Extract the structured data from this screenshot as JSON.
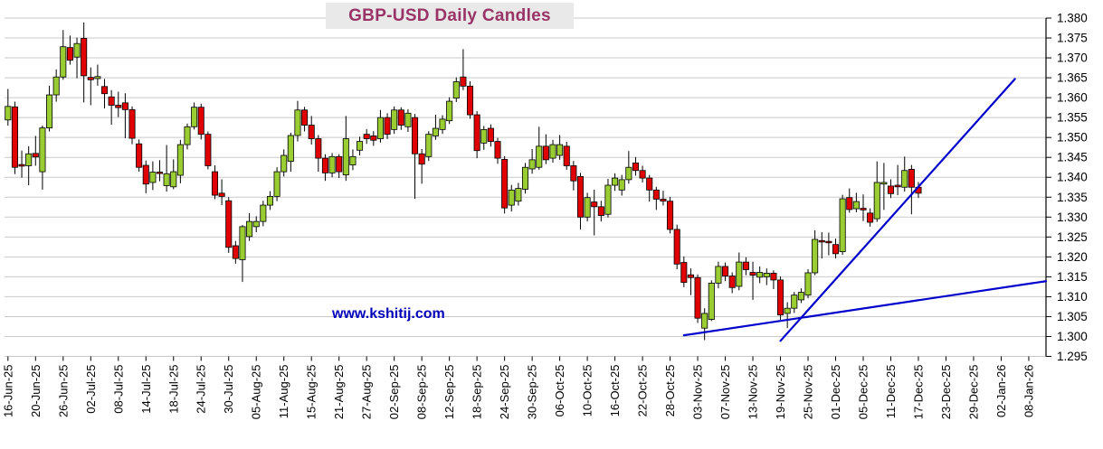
{
  "page": {
    "title": "GBP-USD Daily Candles",
    "watermark": "www.kshitij.com"
  },
  "chart_data": {
    "type": "candlestick",
    "title": "GBP-USD Daily Candles",
    "watermark_text": "www.kshitij.com",
    "ylim": [
      1.295,
      1.38
    ],
    "ytick_step": 0.005,
    "ytick_labels": [
      "1.380",
      "1.375",
      "1.370",
      "1.365",
      "1.360",
      "1.355",
      "1.350",
      "1.345",
      "1.340",
      "1.335",
      "1.330",
      "1.325",
      "1.320",
      "1.315",
      "1.310",
      "1.305",
      "1.300",
      "1.295"
    ],
    "xtick_labels": [
      "16-Jun-25",
      "20-Jun-25",
      "26-Jun-25",
      "02-Jul-25",
      "08-Jul-25",
      "14-Jul-25",
      "18-Jul-25",
      "24-Jul-25",
      "30-Jul-25",
      "05-Aug-25",
      "11-Aug-25",
      "15-Aug-25",
      "21-Aug-25",
      "27-Aug-25",
      "02-Sep-25",
      "08-Sep-25",
      "12-Sep-25",
      "18-Sep-25",
      "24-Sep-25",
      "30-Sep-25",
      "06-Oct-25",
      "10-Oct-25",
      "16-Oct-25",
      "22-Oct-25",
      "28-Oct-25",
      "03-Nov-25",
      "07-Nov-25",
      "13-Nov-25",
      "19-Nov-25",
      "25-Nov-25",
      "01-Dec-25",
      "05-Dec-25",
      "11-Dec-25",
      "17-Dec-25",
      "23-Dec-25",
      "29-Dec-25",
      "02-Jan-26",
      "08-Jan-26"
    ],
    "xtick_every": 4,
    "total_slots": 151,
    "grid": true,
    "legend": "none",
    "colors": {
      "up": "#9ACD32",
      "down": "#E00000",
      "wick": "#000000",
      "body_border": "#000000",
      "grid": "#c9c9c9",
      "axis": "#000000",
      "trendline": "#0000CC",
      "title_color": "#993366",
      "title_bg": "#e9e9e9",
      "watermark_color": "#0000bb",
      "background": "#ffffff"
    },
    "trendlines": [
      {
        "x1_slot": 98,
        "v1": 1.3003,
        "x2_slot": 150.5,
        "v2": 1.3139
      },
      {
        "x1_slot": 112,
        "v1": 1.2989,
        "x2_slot": 146,
        "v2": 1.3647
      }
    ],
    "candles": [
      {
        "d": "16-Jun-25",
        "o": 1.3544,
        "h": 1.3622,
        "l": 1.353,
        "c": 1.3578
      },
      {
        "d": "17-Jun-25",
        "o": 1.3577,
        "h": 1.359,
        "l": 1.3408,
        "c": 1.3425
      },
      {
        "d": "18-Jun-25",
        "o": 1.3432,
        "h": 1.3467,
        "l": 1.3399,
        "c": 1.3428
      },
      {
        "d": "19-Jun-25",
        "o": 1.3429,
        "h": 1.3478,
        "l": 1.338,
        "c": 1.3459
      },
      {
        "d": "20-Jun-25",
        "o": 1.346,
        "h": 1.3504,
        "l": 1.3429,
        "c": 1.3451
      },
      {
        "d": "23-Jun-25",
        "o": 1.3414,
        "h": 1.353,
        "l": 1.3369,
        "c": 1.3524
      },
      {
        "d": "24-Jun-25",
        "o": 1.3524,
        "h": 1.363,
        "l": 1.3515,
        "c": 1.3607
      },
      {
        "d": "25-Jun-25",
        "o": 1.3607,
        "h": 1.3671,
        "l": 1.359,
        "c": 1.3652
      },
      {
        "d": "26-Jun-25",
        "o": 1.3652,
        "h": 1.377,
        "l": 1.3645,
        "c": 1.3728
      },
      {
        "d": "27-Jun-25",
        "o": 1.3726,
        "h": 1.3756,
        "l": 1.3683,
        "c": 1.3694
      },
      {
        "d": "30-Jun-25",
        "o": 1.3702,
        "h": 1.3751,
        "l": 1.3649,
        "c": 1.3736
      },
      {
        "d": "01-Jul-25",
        "o": 1.3749,
        "h": 1.3789,
        "l": 1.3588,
        "c": 1.3655
      },
      {
        "d": "02-Jul-25",
        "o": 1.3651,
        "h": 1.3676,
        "l": 1.3581,
        "c": 1.3645
      },
      {
        "d": "03-Jul-25",
        "o": 1.3648,
        "h": 1.3683,
        "l": 1.363,
        "c": 1.3653
      },
      {
        "d": "04-Jul-25",
        "o": 1.3628,
        "h": 1.3647,
        "l": 1.3573,
        "c": 1.361
      },
      {
        "d": "07-Jul-25",
        "o": 1.3602,
        "h": 1.3619,
        "l": 1.3532,
        "c": 1.3581
      },
      {
        "d": "08-Jul-25",
        "o": 1.3581,
        "h": 1.3615,
        "l": 1.3551,
        "c": 1.3575
      },
      {
        "d": "09-Jul-25",
        "o": 1.3587,
        "h": 1.3611,
        "l": 1.3498,
        "c": 1.357
      },
      {
        "d": "10-Jul-25",
        "o": 1.357,
        "h": 1.3578,
        "l": 1.3483,
        "c": 1.3498
      },
      {
        "d": "11-Jul-25",
        "o": 1.3484,
        "h": 1.3495,
        "l": 1.3414,
        "c": 1.3425
      },
      {
        "d": "14-Jul-25",
        "o": 1.343,
        "h": 1.3442,
        "l": 1.336,
        "c": 1.3383
      },
      {
        "d": "15-Jul-25",
        "o": 1.3387,
        "h": 1.344,
        "l": 1.3368,
        "c": 1.3413
      },
      {
        "d": "16-Jul-25",
        "o": 1.3413,
        "h": 1.3443,
        "l": 1.339,
        "c": 1.341
      },
      {
        "d": "17-Jul-25",
        "o": 1.3379,
        "h": 1.3481,
        "l": 1.3364,
        "c": 1.3409
      },
      {
        "d": "18-Jul-25",
        "o": 1.3376,
        "h": 1.3445,
        "l": 1.337,
        "c": 1.3414
      },
      {
        "d": "21-Jul-25",
        "o": 1.3405,
        "h": 1.3494,
        "l": 1.3385,
        "c": 1.3482
      },
      {
        "d": "22-Jul-25",
        "o": 1.3482,
        "h": 1.3535,
        "l": 1.347,
        "c": 1.3527
      },
      {
        "d": "23-Jul-25",
        "o": 1.3527,
        "h": 1.3588,
        "l": 1.352,
        "c": 1.3576
      },
      {
        "d": "24-Jul-25",
        "o": 1.3576,
        "h": 1.3585,
        "l": 1.3495,
        "c": 1.3508
      },
      {
        "d": "25-Jul-25",
        "o": 1.3508,
        "h": 1.3515,
        "l": 1.342,
        "c": 1.3429
      },
      {
        "d": "28-Jul-25",
        "o": 1.3414,
        "h": 1.343,
        "l": 1.3345,
        "c": 1.3355
      },
      {
        "d": "29-Jul-25",
        "o": 1.336,
        "h": 1.3395,
        "l": 1.333,
        "c": 1.3352
      },
      {
        "d": "30-Jul-25",
        "o": 1.3341,
        "h": 1.335,
        "l": 1.321,
        "c": 1.3224
      },
      {
        "d": "31-Jul-25",
        "o": 1.3228,
        "h": 1.324,
        "l": 1.3183,
        "c": 1.3196
      },
      {
        "d": "01-Aug-25",
        "o": 1.3193,
        "h": 1.328,
        "l": 1.3137,
        "c": 1.3276
      },
      {
        "d": "04-Aug-25",
        "o": 1.3251,
        "h": 1.331,
        "l": 1.324,
        "c": 1.3289
      },
      {
        "d": "05-Aug-25",
        "o": 1.3276,
        "h": 1.3302,
        "l": 1.3262,
        "c": 1.3289
      },
      {
        "d": "06-Aug-25",
        "o": 1.3289,
        "h": 1.3341,
        "l": 1.3277,
        "c": 1.333
      },
      {
        "d": "07-Aug-25",
        "o": 1.333,
        "h": 1.3365,
        "l": 1.3318,
        "c": 1.3352
      },
      {
        "d": "08-Aug-25",
        "o": 1.3352,
        "h": 1.3425,
        "l": 1.334,
        "c": 1.3414
      },
      {
        "d": "11-Aug-25",
        "o": 1.3414,
        "h": 1.347,
        "l": 1.3402,
        "c": 1.3455
      },
      {
        "d": "12-Aug-25",
        "o": 1.344,
        "h": 1.3512,
        "l": 1.3414,
        "c": 1.3505
      },
      {
        "d": "13-Aug-25",
        "o": 1.3505,
        "h": 1.3592,
        "l": 1.349,
        "c": 1.3569
      },
      {
        "d": "14-Aug-25",
        "o": 1.3569,
        "h": 1.3577,
        "l": 1.3515,
        "c": 1.3531
      },
      {
        "d": "15-Aug-25",
        "o": 1.3531,
        "h": 1.3554,
        "l": 1.3482,
        "c": 1.3497
      },
      {
        "d": "18-Aug-25",
        "o": 1.3497,
        "h": 1.3506,
        "l": 1.3414,
        "c": 1.3448
      },
      {
        "d": "19-Aug-25",
        "o": 1.3448,
        "h": 1.3458,
        "l": 1.3391,
        "c": 1.3411
      },
      {
        "d": "20-Aug-25",
        "o": 1.3411,
        "h": 1.3461,
        "l": 1.34,
        "c": 1.3452
      },
      {
        "d": "21-Aug-25",
        "o": 1.3452,
        "h": 1.3458,
        "l": 1.3398,
        "c": 1.3414
      },
      {
        "d": "22-Aug-25",
        "o": 1.3406,
        "h": 1.3554,
        "l": 1.3391,
        "c": 1.3497
      },
      {
        "d": "25-Aug-25",
        "o": 1.3431,
        "h": 1.347,
        "l": 1.3418,
        "c": 1.3452
      },
      {
        "d": "26-Aug-25",
        "o": 1.3468,
        "h": 1.3502,
        "l": 1.3455,
        "c": 1.349
      },
      {
        "d": "27-Aug-25",
        "o": 1.3508,
        "h": 1.3521,
        "l": 1.3484,
        "c": 1.3497
      },
      {
        "d": "28-Aug-25",
        "o": 1.3504,
        "h": 1.3516,
        "l": 1.3479,
        "c": 1.3493
      },
      {
        "d": "29-Aug-25",
        "o": 1.3497,
        "h": 1.3569,
        "l": 1.3487,
        "c": 1.355
      },
      {
        "d": "01-Sep-25",
        "o": 1.355,
        "h": 1.3561,
        "l": 1.3496,
        "c": 1.3508
      },
      {
        "d": "02-Sep-25",
        "o": 1.352,
        "h": 1.3578,
        "l": 1.3509,
        "c": 1.3569
      },
      {
        "d": "03-Sep-25",
        "o": 1.3569,
        "h": 1.3576,
        "l": 1.3519,
        "c": 1.3531
      },
      {
        "d": "04-Sep-25",
        "o": 1.3527,
        "h": 1.3571,
        "l": 1.3514,
        "c": 1.3561
      },
      {
        "d": "05-Sep-25",
        "o": 1.355,
        "h": 1.3559,
        "l": 1.3346,
        "c": 1.3459
      },
      {
        "d": "08-Sep-25",
        "o": 1.3459,
        "h": 1.3471,
        "l": 1.3384,
        "c": 1.3433
      },
      {
        "d": "09-Sep-25",
        "o": 1.3452,
        "h": 1.3516,
        "l": 1.3441,
        "c": 1.3508
      },
      {
        "d": "10-Sep-25",
        "o": 1.3504,
        "h": 1.3557,
        "l": 1.3494,
        "c": 1.3523
      },
      {
        "d": "11-Sep-25",
        "o": 1.352,
        "h": 1.3556,
        "l": 1.3509,
        "c": 1.3546
      },
      {
        "d": "12-Sep-25",
        "o": 1.3542,
        "h": 1.3601,
        "l": 1.3534,
        "c": 1.3591
      },
      {
        "d": "15-Sep-25",
        "o": 1.3599,
        "h": 1.3651,
        "l": 1.3589,
        "c": 1.364
      },
      {
        "d": "16-Sep-25",
        "o": 1.3652,
        "h": 1.3722,
        "l": 1.3619,
        "c": 1.3629
      },
      {
        "d": "17-Sep-25",
        "o": 1.3629,
        "h": 1.3641,
        "l": 1.3547,
        "c": 1.3557
      },
      {
        "d": "18-Sep-25",
        "o": 1.3557,
        "h": 1.3566,
        "l": 1.3448,
        "c": 1.3467
      },
      {
        "d": "19-Sep-25",
        "o": 1.3486,
        "h": 1.3529,
        "l": 1.3469,
        "c": 1.352
      },
      {
        "d": "22-Sep-25",
        "o": 1.3523,
        "h": 1.3533,
        "l": 1.3477,
        "c": 1.349
      },
      {
        "d": "23-Sep-25",
        "o": 1.349,
        "h": 1.3499,
        "l": 1.3434,
        "c": 1.3448
      },
      {
        "d": "24-Sep-25",
        "o": 1.3445,
        "h": 1.3453,
        "l": 1.3309,
        "c": 1.3323
      },
      {
        "d": "25-Sep-25",
        "o": 1.333,
        "h": 1.3381,
        "l": 1.3314,
        "c": 1.3368
      },
      {
        "d": "26-Sep-25",
        "o": 1.334,
        "h": 1.3386,
        "l": 1.3329,
        "c": 1.3372
      },
      {
        "d": "29-Sep-25",
        "o": 1.337,
        "h": 1.3436,
        "l": 1.3359,
        "c": 1.3425
      },
      {
        "d": "30-Sep-25",
        "o": 1.3421,
        "h": 1.3471,
        "l": 1.3409,
        "c": 1.3444
      },
      {
        "d": "01-Oct-25",
        "o": 1.3425,
        "h": 1.3527,
        "l": 1.3419,
        "c": 1.3478
      },
      {
        "d": "02-Oct-25",
        "o": 1.3478,
        "h": 1.3508,
        "l": 1.3433,
        "c": 1.3444
      },
      {
        "d": "03-Oct-25",
        "o": 1.3448,
        "h": 1.3494,
        "l": 1.3437,
        "c": 1.3482
      },
      {
        "d": "06-Oct-25",
        "o": 1.3455,
        "h": 1.3506,
        "l": 1.3444,
        "c": 1.3482
      },
      {
        "d": "07-Oct-25",
        "o": 1.3478,
        "h": 1.3489,
        "l": 1.3419,
        "c": 1.3429
      },
      {
        "d": "08-Oct-25",
        "o": 1.3429,
        "h": 1.3441,
        "l": 1.3367,
        "c": 1.3391
      },
      {
        "d": "09-Oct-25",
        "o": 1.3402,
        "h": 1.3411,
        "l": 1.3269,
        "c": 1.33
      },
      {
        "d": "10-Oct-25",
        "o": 1.33,
        "h": 1.3361,
        "l": 1.3289,
        "c": 1.3349
      },
      {
        "d": "13-Oct-25",
        "o": 1.3338,
        "h": 1.3369,
        "l": 1.3254,
        "c": 1.3326
      },
      {
        "d": "14-Oct-25",
        "o": 1.3326,
        "h": 1.3341,
        "l": 1.3289,
        "c": 1.3304
      },
      {
        "d": "15-Oct-25",
        "o": 1.3307,
        "h": 1.3396,
        "l": 1.3299,
        "c": 1.338
      },
      {
        "d": "16-Oct-25",
        "o": 1.338,
        "h": 1.341,
        "l": 1.3366,
        "c": 1.3398
      },
      {
        "d": "17-Oct-25",
        "o": 1.3368,
        "h": 1.3406,
        "l": 1.3354,
        "c": 1.3394
      },
      {
        "d": "20-Oct-25",
        "o": 1.3394,
        "h": 1.3466,
        "l": 1.3384,
        "c": 1.3425
      },
      {
        "d": "21-Oct-25",
        "o": 1.3436,
        "h": 1.3451,
        "l": 1.3404,
        "c": 1.3417
      },
      {
        "d": "22-Oct-25",
        "o": 1.3417,
        "h": 1.3429,
        "l": 1.3387,
        "c": 1.3398
      },
      {
        "d": "23-Oct-25",
        "o": 1.3398,
        "h": 1.3406,
        "l": 1.3339,
        "c": 1.3368
      },
      {
        "d": "24-Oct-25",
        "o": 1.3368,
        "h": 1.3376,
        "l": 1.3318,
        "c": 1.3345
      },
      {
        "d": "27-Oct-25",
        "o": 1.3345,
        "h": 1.3366,
        "l": 1.3329,
        "c": 1.334
      },
      {
        "d": "28-Oct-25",
        "o": 1.334,
        "h": 1.3351,
        "l": 1.3259,
        "c": 1.3269
      },
      {
        "d": "29-Oct-25",
        "o": 1.3269,
        "h": 1.3281,
        "l": 1.3169,
        "c": 1.3182
      },
      {
        "d": "30-Oct-25",
        "o": 1.3186,
        "h": 1.3201,
        "l": 1.3124,
        "c": 1.3136
      },
      {
        "d": "31-Oct-25",
        "o": 1.3155,
        "h": 1.3171,
        "l": 1.3104,
        "c": 1.3148
      },
      {
        "d": "03-Nov-25",
        "o": 1.3148,
        "h": 1.3156,
        "l": 1.3034,
        "c": 1.3046
      },
      {
        "d": "04-Nov-25",
        "o": 1.3021,
        "h": 1.3071,
        "l": 1.2991,
        "c": 1.3058
      },
      {
        "d": "05-Nov-25",
        "o": 1.3043,
        "h": 1.3141,
        "l": 1.3039,
        "c": 1.3134
      },
      {
        "d": "06-Nov-25",
        "o": 1.3134,
        "h": 1.3188,
        "l": 1.3121,
        "c": 1.3176
      },
      {
        "d": "07-Nov-25",
        "o": 1.3176,
        "h": 1.3186,
        "l": 1.3139,
        "c": 1.3152
      },
      {
        "d": "10-Nov-25",
        "o": 1.3152,
        "h": 1.3161,
        "l": 1.3109,
        "c": 1.3123
      },
      {
        "d": "11-Nov-25",
        "o": 1.3126,
        "h": 1.3211,
        "l": 1.3116,
        "c": 1.3187
      },
      {
        "d": "12-Nov-25",
        "o": 1.3187,
        "h": 1.3199,
        "l": 1.3154,
        "c": 1.3168
      },
      {
        "d": "13-Nov-25",
        "o": 1.3161,
        "h": 1.3188,
        "l": 1.3092,
        "c": 1.3154
      },
      {
        "d": "14-Nov-25",
        "o": 1.3149,
        "h": 1.3176,
        "l": 1.3134,
        "c": 1.3161
      },
      {
        "d": "17-Nov-25",
        "o": 1.315,
        "h": 1.3171,
        "l": 1.3129,
        "c": 1.3159
      },
      {
        "d": "18-Nov-25",
        "o": 1.3159,
        "h": 1.3166,
        "l": 1.3119,
        "c": 1.3142
      },
      {
        "d": "19-Nov-25",
        "o": 1.3142,
        "h": 1.3151,
        "l": 1.3042,
        "c": 1.3054
      },
      {
        "d": "20-Nov-25",
        "o": 1.3058,
        "h": 1.3086,
        "l": 1.3021,
        "c": 1.3071
      },
      {
        "d": "21-Nov-25",
        "o": 1.3071,
        "h": 1.3112,
        "l": 1.3059,
        "c": 1.3104
      },
      {
        "d": "24-Nov-25",
        "o": 1.3092,
        "h": 1.3121,
        "l": 1.3084,
        "c": 1.3111
      },
      {
        "d": "25-Nov-25",
        "o": 1.3104,
        "h": 1.3169,
        "l": 1.3096,
        "c": 1.316
      },
      {
        "d": "26-Nov-25",
        "o": 1.316,
        "h": 1.3267,
        "l": 1.3154,
        "c": 1.3244
      },
      {
        "d": "27-Nov-25",
        "o": 1.3241,
        "h": 1.3262,
        "l": 1.3196,
        "c": 1.3238
      },
      {
        "d": "28-Nov-25",
        "o": 1.3239,
        "h": 1.3261,
        "l": 1.3204,
        "c": 1.3236
      },
      {
        "d": "01-Dec-25",
        "o": 1.3231,
        "h": 1.3246,
        "l": 1.3196,
        "c": 1.3208
      },
      {
        "d": "02-Dec-25",
        "o": 1.3213,
        "h": 1.3356,
        "l": 1.3205,
        "c": 1.3346
      },
      {
        "d": "03-Dec-25",
        "o": 1.3349,
        "h": 1.3372,
        "l": 1.3311,
        "c": 1.3319
      },
      {
        "d": "04-Dec-25",
        "o": 1.3321,
        "h": 1.3361,
        "l": 1.3312,
        "c": 1.3339
      },
      {
        "d": "05-Dec-25",
        "o": 1.3322,
        "h": 1.3357,
        "l": 1.329,
        "c": 1.3318
      },
      {
        "d": "08-Dec-25",
        "o": 1.331,
        "h": 1.3322,
        "l": 1.3276,
        "c": 1.3287
      },
      {
        "d": "09-Dec-25",
        "o": 1.3296,
        "h": 1.344,
        "l": 1.3288,
        "c": 1.3387
      },
      {
        "d": "10-Dec-25",
        "o": 1.3383,
        "h": 1.3436,
        "l": 1.3318,
        "c": 1.3387
      },
      {
        "d": "11-Dec-25",
        "o": 1.3378,
        "h": 1.3395,
        "l": 1.3348,
        "c": 1.3359
      },
      {
        "d": "12-Dec-25",
        "o": 1.338,
        "h": 1.3431,
        "l": 1.3355,
        "c": 1.3376
      },
      {
        "d": "15-Dec-25",
        "o": 1.3375,
        "h": 1.3452,
        "l": 1.3364,
        "c": 1.3417
      },
      {
        "d": "16-Dec-25",
        "o": 1.342,
        "h": 1.3431,
        "l": 1.3307,
        "c": 1.3375
      },
      {
        "d": "17-Dec-25",
        "o": 1.3375,
        "h": 1.3388,
        "l": 1.3348,
        "c": 1.336
      }
    ]
  }
}
